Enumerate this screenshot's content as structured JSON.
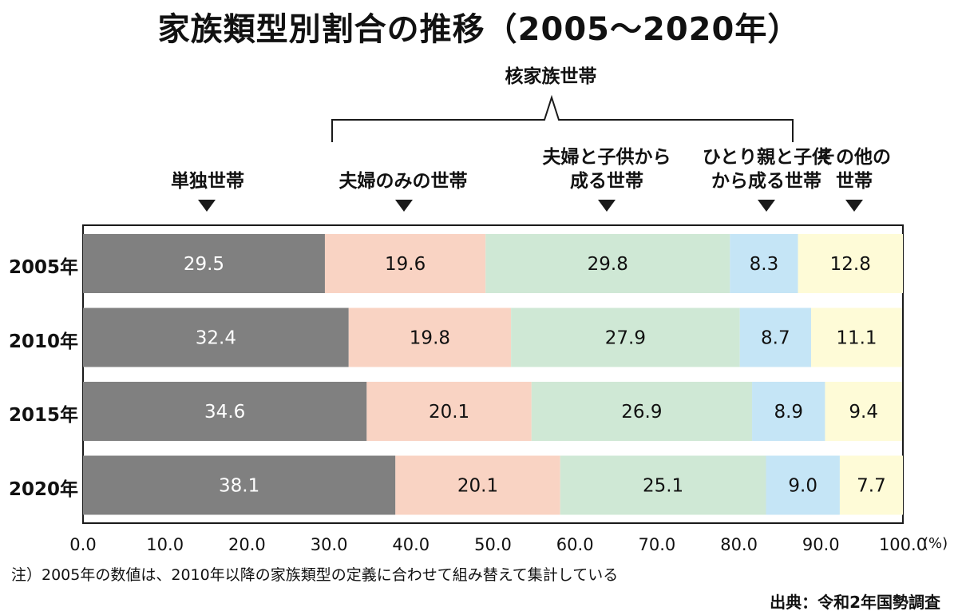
{
  "title": "家族類型別割合の推移（2005～2020年）",
  "group_label": "核家族世帯",
  "category_labels": [
    [
      "単独世帯"
    ],
    [
      "夫婦のみの世帯"
    ],
    [
      "夫婦と子供から",
      "成る世帯"
    ],
    [
      "ひとり親と子供",
      "から成る世帯"
    ],
    [
      "その他の",
      "世帯"
    ]
  ],
  "note": "注）2005年の数値は、2010年以降の家族類型の定義に合わせて組み替えて集計している",
  "source": "出典：令和2年国勢調査",
  "chart_data": {
    "type": "bar",
    "stacked": true,
    "orientation": "horizontal",
    "categories": [
      "2005年",
      "2010年",
      "2015年",
      "2020年"
    ],
    "series": [
      {
        "name": "単独世帯",
        "values": [
          29.5,
          32.4,
          34.6,
          38.1
        ],
        "color": "#808080",
        "label_color": "#ffffff"
      },
      {
        "name": "夫婦のみの世帯",
        "values": [
          19.6,
          19.8,
          20.1,
          20.1
        ],
        "color": "#f9d3c3",
        "label_color": "#111111"
      },
      {
        "name": "夫婦と子供から成る世帯",
        "values": [
          29.8,
          27.9,
          26.9,
          25.1
        ],
        "color": "#cfe8d5",
        "label_color": "#111111"
      },
      {
        "name": "ひとり親と子供から成る世帯",
        "values": [
          8.3,
          8.7,
          8.9,
          9.0
        ],
        "color": "#c5e5f6",
        "label_color": "#111111"
      },
      {
        "name": "その他の世帯",
        "values": [
          12.8,
          11.1,
          9.4,
          7.7
        ],
        "color": "#fefbd7",
        "label_color": "#111111"
      }
    ],
    "xlim": [
      0,
      100
    ],
    "x_ticks": [
      "0.0",
      "10.0",
      "20.0",
      "30.0",
      "40.0",
      "50.0",
      "60.0",
      "70.0",
      "80.0",
      "90.0",
      "100.0"
    ],
    "x_unit": "(%)",
    "grid": false
  }
}
